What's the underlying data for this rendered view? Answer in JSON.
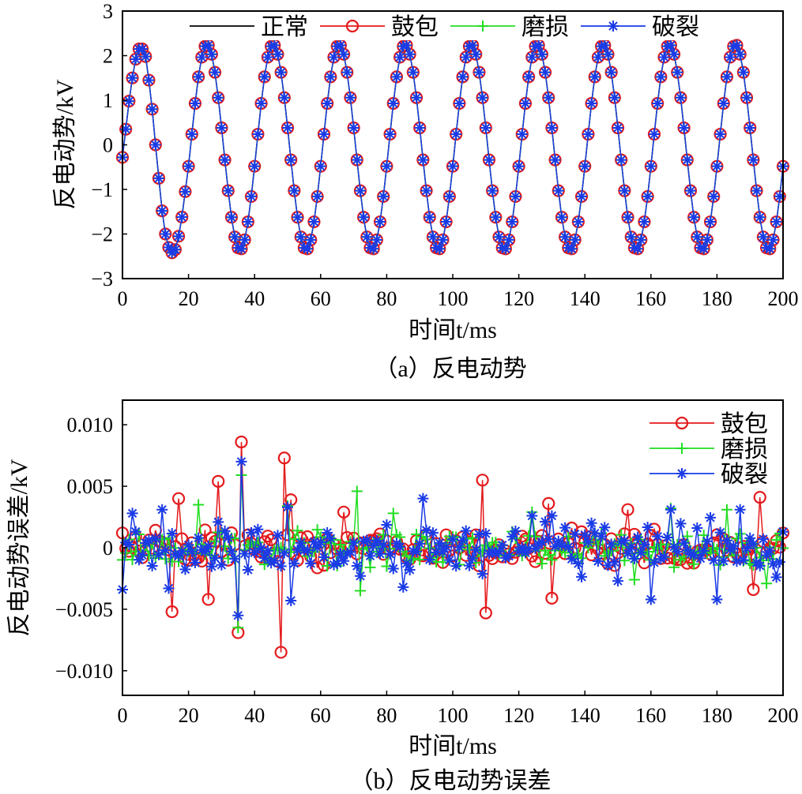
{
  "chart_data": [
    {
      "type": "line",
      "panel": "a",
      "caption": "（a）反电动势",
      "xlabel": "时间t/ms",
      "ylabel": "反电动势/kV",
      "xlim": [
        0,
        200
      ],
      "ylim": [
        -3,
        3
      ],
      "xticks": [
        "0",
        "20",
        "40",
        "60",
        "80",
        "100",
        "120",
        "140",
        "160",
        "180",
        "200"
      ],
      "yticks": [
        "3",
        "2",
        "1",
        "0",
        "−1",
        "−2",
        "−3"
      ],
      "legend_position": "top",
      "signal": {
        "description": "sinusoid sampled every 1 ms",
        "period_ms": 20,
        "amplitude_kV": 2.3,
        "offset_kV": -0.05,
        "x_start": 0,
        "x_end": 200,
        "first_values": [
          -0.28,
          0.35,
          0.98,
          1.5,
          1.92,
          2.15,
          2.15,
          1.98,
          1.45,
          0.8,
          0.0,
          -0.75,
          -1.48,
          -2.0,
          -2.3,
          -2.42,
          -2.35,
          -2.05,
          -1.62,
          -1.05
        ]
      },
      "series": [
        {
          "name": "正常",
          "color": "#000000",
          "marker": "none"
        },
        {
          "name": "鼓包",
          "color": "#e41a1c",
          "marker": "circle"
        },
        {
          "name": "磨损",
          "color": "#22dd22",
          "marker": "plus"
        },
        {
          "name": "破裂",
          "color": "#1a3be6",
          "marker": "star"
        }
      ]
    },
    {
      "type": "line",
      "panel": "b",
      "caption": "（b）反电动势误差",
      "xlabel": "时间t/ms",
      "ylabel": "反电动势误差/kV",
      "xlim": [
        0,
        200
      ],
      "ylim": [
        -0.012,
        0.012
      ],
      "xticks": [
        "0",
        "20",
        "40",
        "60",
        "80",
        "100",
        "120",
        "140",
        "160",
        "180",
        "200"
      ],
      "yticks": [
        "0.010",
        "0.005",
        "0",
        "−0.005",
        "−0.010"
      ],
      "legend_position": "top-right",
      "series": [
        {
          "name": "鼓包",
          "color": "#e41a1c",
          "marker": "circle",
          "typical_amplitude": 0.0012,
          "peaks": [
            [
              0,
              0.0012
            ],
            [
              15,
              -0.0052
            ],
            [
              17,
              0.004
            ],
            [
              26,
              -0.0042
            ],
            [
              29,
              0.0054
            ],
            [
              35,
              -0.0069
            ],
            [
              36,
              0.0086
            ],
            [
              48,
              -0.0085
            ],
            [
              49,
              0.0073
            ],
            [
              51,
              0.0039
            ],
            [
              67,
              0.0029
            ],
            [
              109,
              0.0055
            ],
            [
              110,
              -0.0053
            ],
            [
              129,
              0.0036
            ],
            [
              130,
              -0.0041
            ],
            [
              153,
              0.0031
            ],
            [
              191,
              -0.0034
            ],
            [
              193,
              0.0041
            ],
            [
              200,
              0.0012
            ]
          ]
        },
        {
          "name": "磨损",
          "color": "#22dd22",
          "marker": "plus",
          "typical_amplitude": 0.0013,
          "peaks": [
            [
              23,
              0.0035
            ],
            [
              35,
              -0.0065
            ],
            [
              36,
              0.0059
            ],
            [
              50,
              0.0034
            ],
            [
              71,
              0.0046
            ],
            [
              72,
              -0.0035
            ],
            [
              82,
              0.0028
            ],
            [
              124,
              0.0029
            ],
            [
              155,
              -0.0026
            ],
            [
              166,
              0.0032
            ],
            [
              183,
              0.0031
            ],
            [
              195,
              -0.0029
            ]
          ]
        },
        {
          "name": "破裂",
          "color": "#1a3be6",
          "marker": "star",
          "typical_amplitude": 0.0016,
          "peaks": [
            [
              0,
              -0.0034
            ],
            [
              3,
              0.0028
            ],
            [
              12,
              0.0031
            ],
            [
              14,
              -0.0033
            ],
            [
              35,
              -0.0055
            ],
            [
              36,
              0.007
            ],
            [
              50,
              0.0033
            ],
            [
              51,
              -0.0043
            ],
            [
              85,
              -0.0032
            ],
            [
              91,
              0.004
            ],
            [
              124,
              0.0026
            ],
            [
              130,
              0.0026
            ],
            [
              150,
              -0.0027
            ],
            [
              160,
              -0.0042
            ],
            [
              166,
              0.0031
            ],
            [
              180,
              -0.0042
            ],
            [
              187,
              0.0031
            ],
            [
              200,
              0.0013
            ]
          ]
        }
      ]
    }
  ]
}
